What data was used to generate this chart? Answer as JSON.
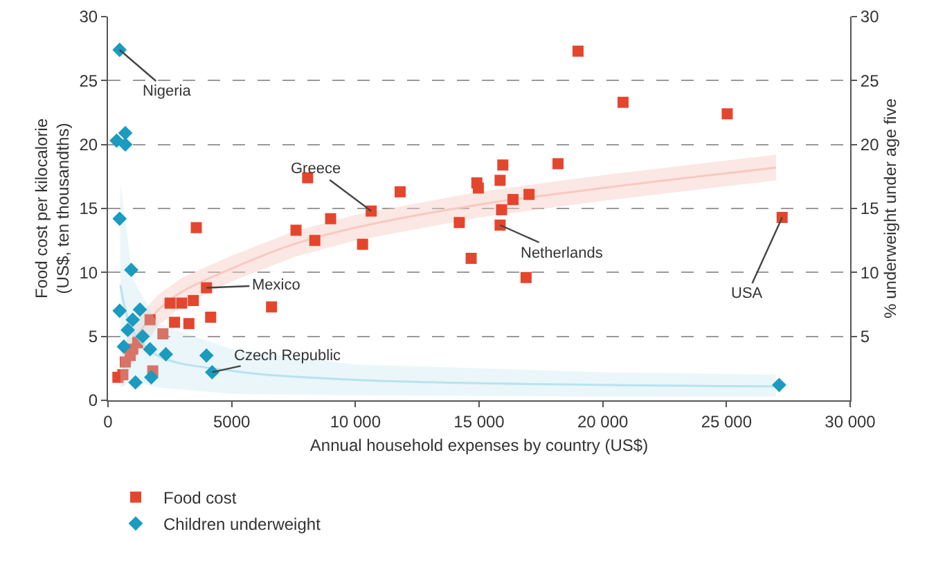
{
  "chart_data": {
    "type": "scatter",
    "xlabel": "Annual household expenses by country (US$)",
    "ylabel": "Food cost per kilocalorie\n(US$, ten thousandths)",
    "y2label": "% underweight under age five",
    "xlim": [
      0,
      30000
    ],
    "xticks": [
      0,
      5000,
      {
        "value": 10000,
        "label": "10 000"
      },
      {
        "value": 15000,
        "label": "15 000"
      },
      {
        "value": 20000,
        "label": "20 000"
      },
      {
        "value": 25000,
        "label": "25 000"
      },
      {
        "value": 30000,
        "label": "30 000"
      }
    ],
    "ylim": [
      0,
      30
    ],
    "yticks": [
      0,
      5,
      10,
      15,
      20,
      25,
      30
    ],
    "y2lim": [
      0,
      30
    ],
    "y2ticks": [
      5,
      10,
      15,
      20,
      25,
      30
    ],
    "grid": "y",
    "legend": "bottom left",
    "series": [
      {
        "type": "line",
        "color": "#f7c9c1",
        "marker": "none",
        "x": [
          600,
          1000,
          2000,
          3000,
          5000,
          7500,
          10000,
          15000,
          20000,
          27000
        ],
        "values": [
          2.5,
          4.5,
          7.0,
          8.5,
          10.3,
          12.2,
          13.5,
          15.3,
          16.6,
          18.2
        ],
        "lower": [
          1.0,
          3.0,
          5.8,
          7.4,
          9.3,
          11.2,
          12.5,
          14.3,
          15.6,
          17.2
        ],
        "upper": [
          4.0,
          6.0,
          8.2,
          9.6,
          11.3,
          13.2,
          14.5,
          16.3,
          17.6,
          19.2
        ]
      },
      {
        "type": "line",
        "color": "#b9e2ef",
        "marker": "none",
        "axis": "y2",
        "x": [
          500,
          1000,
          2000,
          5000,
          10000,
          20000,
          27000
        ],
        "values": [
          9,
          5.5,
          3.5,
          2.3,
          1.6,
          1.2,
          1.1
        ],
        "lower": [
          1,
          1.5,
          1,
          0.5,
          0.4,
          0.3,
          0.3
        ],
        "upper": [
          17,
          9.5,
          6,
          4,
          2.8,
          2.2,
          2.0
        ]
      },
      {
        "name": "Food cost",
        "color": "#e4462d",
        "marker": "square",
        "x": [
          400,
          600,
          700,
          900,
          1000,
          1200,
          1700,
          1810,
          2220,
          2510,
          2690,
          2980,
          3270,
          3450,
          3570,
          3980,
          4150,
          6610,
          7600,
          8070,
          8360,
          9000,
          10290,
          10640,
          11810,
          14200,
          14680,
          14910,
          14970,
          15850,
          15850,
          15910,
          15960,
          16370,
          16900,
          17020,
          18190,
          19000,
          20820,
          25030,
          27250
        ],
        "values": [
          1.8,
          2.0,
          3.0,
          3.5,
          4.0,
          4.5,
          6.3,
          2.3,
          5.2,
          7.6,
          6.1,
          7.6,
          6.0,
          7.8,
          13.5,
          8.8,
          6.5,
          7.3,
          13.3,
          17.4,
          12.5,
          14.2,
          12.2,
          14.8,
          16.3,
          13.9,
          11.1,
          17.0,
          16.6,
          17.2,
          13.7,
          14.9,
          18.4,
          15.7,
          9.6,
          16.1,
          18.5,
          27.3,
          23.3,
          22.4,
          14.3
        ]
      },
      {
        "name": "Children underweight",
        "color": "#1a9bbf",
        "marker": "diamond",
        "axis": "y2",
        "x": [
          350,
          470,
          470,
          470,
          640,
          700,
          700,
          800,
          940,
          1000,
          1110,
          1290,
          1400,
          1700,
          1750,
          2340,
          3980,
          4210,
          27130
        ],
        "values": [
          20.3,
          27.4,
          14.2,
          7.0,
          4.2,
          20.9,
          20.0,
          5.5,
          10.2,
          6.3,
          1.4,
          7.1,
          5.0,
          4.0,
          1.8,
          3.6,
          3.5,
          2.2,
          1.2
        ]
      }
    ],
    "annotations": [
      {
        "text": "Nigeria",
        "x": 470,
        "y": 27.4
      },
      {
        "text": "Greece",
        "x": 10640,
        "y": 14.8
      },
      {
        "text": "Mexico",
        "x": 3980,
        "y": 8.8
      },
      {
        "text": "Czech Republic",
        "x": 4210,
        "y": 2.2
      },
      {
        "text": "Netherlands",
        "x": 15850,
        "y": 13.7
      },
      {
        "text": "USA",
        "x": 27250,
        "y": 14.3
      }
    ]
  }
}
